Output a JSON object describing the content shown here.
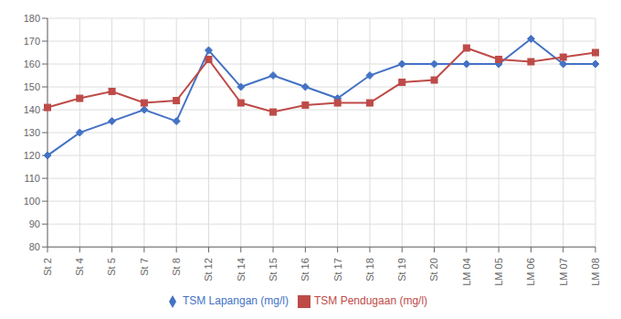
{
  "chart_data": {
    "type": "line",
    "categories": [
      "St 2",
      "St 4",
      "St 5",
      "St 7",
      "St 8",
      "St 12",
      "St 14",
      "St 15",
      "St 16",
      "St 17",
      "St 18",
      "St 19",
      "St 20",
      "LM 04",
      "LM 05",
      "LM 06",
      "LM 07",
      "LM 08"
    ],
    "series": [
      {
        "name": "TSM Lapangan (mg/l)",
        "color": "#4472C4",
        "marker": "diamond",
        "values": [
          120,
          130,
          135,
          140,
          135,
          166,
          150,
          155,
          150,
          145,
          155,
          160,
          160,
          160,
          160,
          171,
          160,
          160
        ]
      },
      {
        "name": "TSM Pendugaan (mg/l)",
        "color": "#BE4B48",
        "marker": "square",
        "values": [
          141,
          145,
          148,
          143,
          144,
          162,
          143,
          139,
          142,
          143,
          143,
          152,
          153,
          167,
          162,
          161,
          163,
          165
        ]
      }
    ],
    "ylim": [
      80,
      180
    ],
    "yticks": [
      80,
      90,
      100,
      110,
      120,
      130,
      140,
      150,
      160,
      170,
      180
    ],
    "grid": true,
    "legend": "bottom"
  }
}
